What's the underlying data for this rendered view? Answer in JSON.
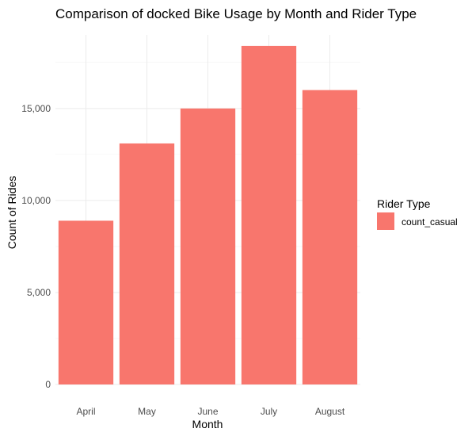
{
  "chart_data": {
    "type": "bar",
    "title": "Comparison of docked Bike Usage by Month and Rider Type",
    "xlabel": "Month",
    "ylabel": "Count of Rides",
    "categories": [
      "April",
      "May",
      "June",
      "July",
      "August"
    ],
    "series": [
      {
        "name": "count_casual",
        "values": [
          8900,
          13100,
          15000,
          18400,
          16000
        ],
        "color": "#f8766d"
      }
    ],
    "ylim": [
      0,
      19000
    ],
    "yticks": [
      0,
      5000,
      10000,
      15000
    ],
    "ytick_labels": [
      "0",
      "5,000",
      "10,000",
      "15,000"
    ],
    "grid": true,
    "legend": {
      "title": "Rider Type",
      "position": "right"
    }
  }
}
